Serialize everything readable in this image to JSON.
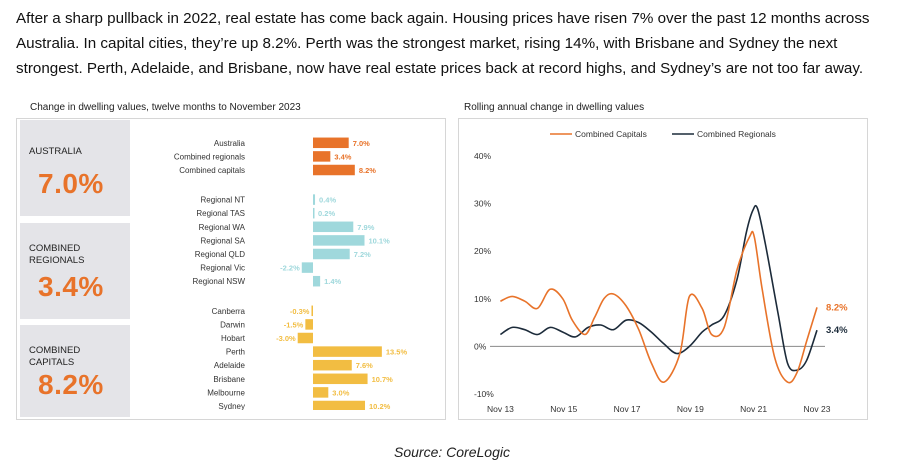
{
  "intro_text": "After a sharp pullback in 2022, real estate has come back again. Housing prices have risen 7% over the past 12 months across Australia. In capital cities, they’re up 8.2%. Perth was the strongest market, rising 14%, with Brisbane and Sydney the next strongest. Perth, Adelaide, and Brisbane, now have real estate prices back at record highs, and Sydney’s are not too far away.",
  "kpis": [
    {
      "label": "AUSTRALIA",
      "value": "7.0%"
    },
    {
      "label": "COMBINED\nREGIONALS",
      "value": "3.4%"
    },
    {
      "label": "COMBINED\nCAPITALS",
      "value": "8.2%"
    }
  ],
  "source": "Source: CoreLogic",
  "colors": {
    "orange": "#e8732a",
    "teal": "#9fd8dc",
    "gold": "#f2bd42",
    "navy": "#1c2b3a",
    "grey_panel": "#e4e4e8",
    "axis": "#8a8a8a"
  },
  "chart_data": [
    {
      "type": "bar",
      "orientation": "horizontal",
      "title": "Change in dwelling values, twelve months to November 2023",
      "groups": [
        {
          "color": "#e8732a",
          "categories": [
            "Australia",
            "Combined regionals",
            "Combined capitals"
          ],
          "values": [
            7.0,
            3.4,
            8.2
          ],
          "labels": [
            "7.0%",
            "3.4%",
            "8.2%"
          ]
        },
        {
          "color": "#9fd8dc",
          "categories": [
            "Regional NT",
            "Regional TAS",
            "Regional WA",
            "Regional SA",
            "Regional QLD",
            "Regional Vic",
            "Regional NSW"
          ],
          "values": [
            0.4,
            0.2,
            7.9,
            10.1,
            7.2,
            -2.2,
            1.4
          ],
          "labels": [
            "0.4%",
            "0.2%",
            "7.9%",
            "10.1%",
            "7.2%",
            "-2.2%",
            "1.4%"
          ]
        },
        {
          "color": "#f2bd42",
          "categories": [
            "Canberra",
            "Darwin",
            "Hobart",
            "Perth",
            "Adelaide",
            "Brisbane",
            "Melbourne",
            "Sydney"
          ],
          "values": [
            -0.3,
            -1.5,
            -3.0,
            13.5,
            7.6,
            10.7,
            3.0,
            10.2
          ],
          "labels": [
            "-0.3%",
            "-1.5%",
            "-3.0%",
            "13.5%",
            "7.6%",
            "10.7%",
            "3.0%",
            "10.2%"
          ]
        }
      ]
    },
    {
      "type": "line",
      "title": "Rolling annual change in dwelling values",
      "x_tick_labels": [
        "Nov 13",
        "Nov 15",
        "Nov 17",
        "Nov 19",
        "Nov 21",
        "Nov 23"
      ],
      "x_tick_years": [
        2013.83,
        2015.83,
        2017.83,
        2019.83,
        2021.83,
        2023.83
      ],
      "y_tick_labels": [
        "-10%",
        "0%",
        "10%",
        "20%",
        "30%",
        "40%"
      ],
      "y_tick_values": [
        -10,
        0,
        10,
        20,
        30,
        40
      ],
      "ylim": [
        -10,
        40
      ],
      "xlim": [
        2013.5,
        2024.4
      ],
      "zero_line": true,
      "legend_position": "top",
      "series": [
        {
          "name": "Combined Capitals",
          "color": "#e8732a",
          "end_label": "8.2%",
          "x": [
            2013.83,
            2014.2,
            2014.6,
            2015.0,
            2015.4,
            2015.8,
            2016.1,
            2016.5,
            2016.8,
            2017.1,
            2017.4,
            2017.8,
            2018.2,
            2018.6,
            2019.0,
            2019.5,
            2019.8,
            2020.2,
            2020.5,
            2020.9,
            2021.3,
            2021.7,
            2021.85,
            2022.1,
            2022.5,
            2022.9,
            2023.2,
            2023.5,
            2023.83
          ],
          "y": [
            9.5,
            10.5,
            9.5,
            8.0,
            12.0,
            10.0,
            5.5,
            2.5,
            6.0,
            10.0,
            11.0,
            8.5,
            3.5,
            -3.5,
            -7.5,
            -1.5,
            10.5,
            8.0,
            2.5,
            4.0,
            16.0,
            23.0,
            23.0,
            12.0,
            -2.5,
            -7.5,
            -5.5,
            1.0,
            8.2
          ]
        },
        {
          "name": "Combined Regionals",
          "color": "#1c2b3a",
          "end_label": "3.4%",
          "x": [
            2013.83,
            2014.2,
            2014.6,
            2015.0,
            2015.4,
            2015.8,
            2016.2,
            2016.6,
            2017.0,
            2017.4,
            2017.8,
            2018.2,
            2018.6,
            2019.0,
            2019.4,
            2019.8,
            2020.2,
            2020.5,
            2020.9,
            2021.3,
            2021.6,
            2021.8,
            2021.95,
            2022.2,
            2022.6,
            2022.9,
            2023.2,
            2023.5,
            2023.83
          ],
          "y": [
            2.5,
            4.0,
            3.5,
            2.5,
            4.0,
            3.0,
            2.0,
            4.0,
            4.5,
            3.5,
            5.5,
            5.0,
            3.0,
            0.5,
            -1.5,
            0.0,
            3.0,
            4.5,
            6.5,
            14.0,
            24.0,
            28.5,
            29.0,
            21.5,
            7.0,
            -3.5,
            -5.0,
            -3.0,
            3.4
          ]
        }
      ]
    }
  ]
}
